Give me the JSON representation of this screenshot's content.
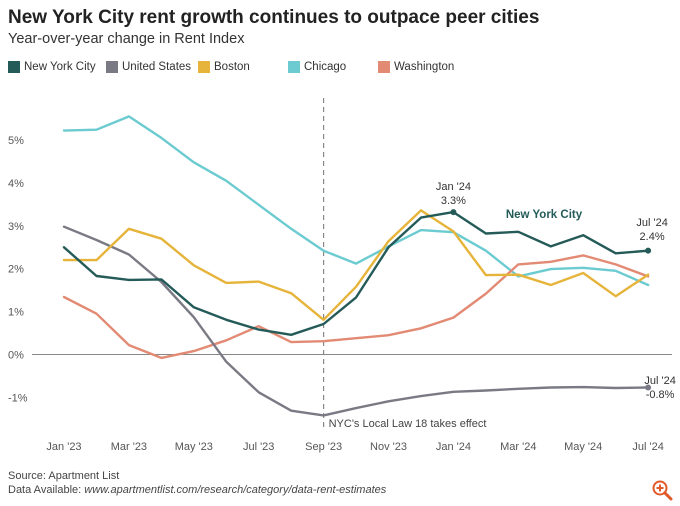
{
  "title": "New York City rent growth continues to outpace peer cities",
  "subtitle": "Year-over-year change in Rent Index",
  "legend": [
    {
      "name": "New York City",
      "color": "#245b59"
    },
    {
      "name": "United States",
      "color": "#7a7a85"
    },
    {
      "name": "Boston",
      "color": "#e6b43a"
    },
    {
      "name": "Chicago",
      "color": "#6bcbd0"
    },
    {
      "name": "Washington",
      "color": "#e28a73"
    }
  ],
  "footer": {
    "source": "Source: Apartment List",
    "data_label": "Data Available: ",
    "data_url": "www.apartmentlist.com/research/category/data-rent-estimates"
  },
  "zoom_icon": "zoom-in-icon",
  "chart_data": {
    "type": "line",
    "x": [
      "Jan '23",
      "Feb '23",
      "Mar '23",
      "Apr '23",
      "May '23",
      "Jun '23",
      "Jul '23",
      "Aug '23",
      "Sep '23",
      "Oct '23",
      "Nov '23",
      "Dec '23",
      "Jan '24",
      "Feb '24",
      "Mar '24",
      "Apr '24",
      "May '24",
      "Jun '24",
      "Jul '24"
    ],
    "xticks": [
      "Jan '23",
      "Mar '23",
      "May '23",
      "Jul '23",
      "Sep '23",
      "Nov '23",
      "Jan '24",
      "Mar '24",
      "May '24",
      "Jul '24"
    ],
    "ylim": [
      -1.9,
      5.9
    ],
    "yticks": [
      -1,
      0,
      1,
      2,
      3,
      4,
      5
    ],
    "ytick_labels": [
      "-1%",
      "0%",
      "1%",
      "2%",
      "3%",
      "4%",
      "5%"
    ],
    "series": [
      {
        "name": "Chicago",
        "color": "#6bcbd0",
        "values": [
          5.22,
          5.24,
          5.55,
          5.05,
          4.48,
          4.05,
          3.49,
          2.93,
          2.42,
          2.12,
          2.52,
          2.9,
          2.85,
          2.42,
          1.82,
          1.99,
          2.02,
          1.95,
          1.62
        ]
      },
      {
        "name": "Washington",
        "color": "#e28a73",
        "values": [
          1.34,
          0.95,
          0.22,
          -0.08,
          0.08,
          0.33,
          0.66,
          0.29,
          0.31,
          0.38,
          0.45,
          0.61,
          0.86,
          1.42,
          2.1,
          2.16,
          2.31,
          2.1,
          1.82
        ]
      },
      {
        "name": "United States",
        "color": "#7a7a85",
        "values": [
          2.98,
          2.67,
          2.33,
          1.69,
          0.87,
          -0.17,
          -0.88,
          -1.31,
          -1.42,
          -1.25,
          -1.09,
          -0.97,
          -0.87,
          -0.84,
          -0.8,
          -0.77,
          -0.76,
          -0.78,
          -0.77
        ]
      },
      {
        "name": "Boston",
        "color": "#e6b43a",
        "values": [
          2.2,
          2.2,
          2.93,
          2.7,
          2.08,
          1.67,
          1.7,
          1.43,
          0.81,
          1.58,
          2.64,
          3.36,
          2.87,
          1.85,
          1.86,
          1.62,
          1.9,
          1.36,
          1.86
        ]
      },
      {
        "name": "New York City",
        "color": "#245b59",
        "values": [
          2.5,
          1.83,
          1.74,
          1.75,
          1.1,
          0.81,
          0.58,
          0.46,
          0.71,
          1.33,
          2.5,
          3.19,
          3.32,
          2.82,
          2.86,
          2.52,
          2.78,
          2.36,
          2.42
        ]
      }
    ],
    "event": {
      "x_label": "Sep '23",
      "text": "NYC's Local Law 18 takes effect"
    },
    "annotations": {
      "nyc_peak": {
        "date": "Jan '24",
        "value": "3.3%"
      },
      "nyc_series_label": "New York City",
      "nyc_last": {
        "date": "Jul '24",
        "value": "2.4%"
      },
      "us_last": {
        "date": "Jul '24",
        "value": "-0.8%"
      }
    }
  }
}
